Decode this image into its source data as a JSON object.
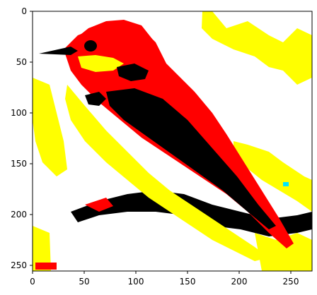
{
  "image": {
    "description_colors": {
      "red": "#ff0000",
      "yellow": "#ffff00",
      "black": "#000000",
      "white": "#ffffff",
      "accent_cyan": "#00e5ff"
    },
    "subject": "posterized bird on branch"
  },
  "axes": {
    "x_ticks": [
      "0",
      "50",
      "100",
      "150",
      "200",
      "250"
    ],
    "y_ticks": [
      "0",
      "50",
      "100",
      "150",
      "200",
      "250"
    ],
    "xlim": [
      0,
      270
    ],
    "ylim": [
      256,
      0
    ]
  }
}
